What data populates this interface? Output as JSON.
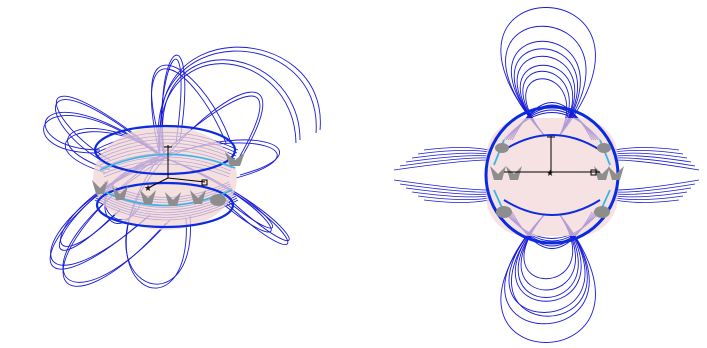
{
  "colors": {
    "field_line": "#1a1ad6",
    "field_line_dense": "#0b2be0",
    "cyan_line": "#38b6e6",
    "body_fill": "#f2d6d6",
    "magnet_gray": "#8d8d8d",
    "axis": "#000000"
  },
  "views": [
    {
      "name": "perspective-view"
    },
    {
      "name": "side-view"
    }
  ],
  "icons": {
    "axis_triad": "axis-triad-icon",
    "origin_marker": "star-marker-icon"
  }
}
